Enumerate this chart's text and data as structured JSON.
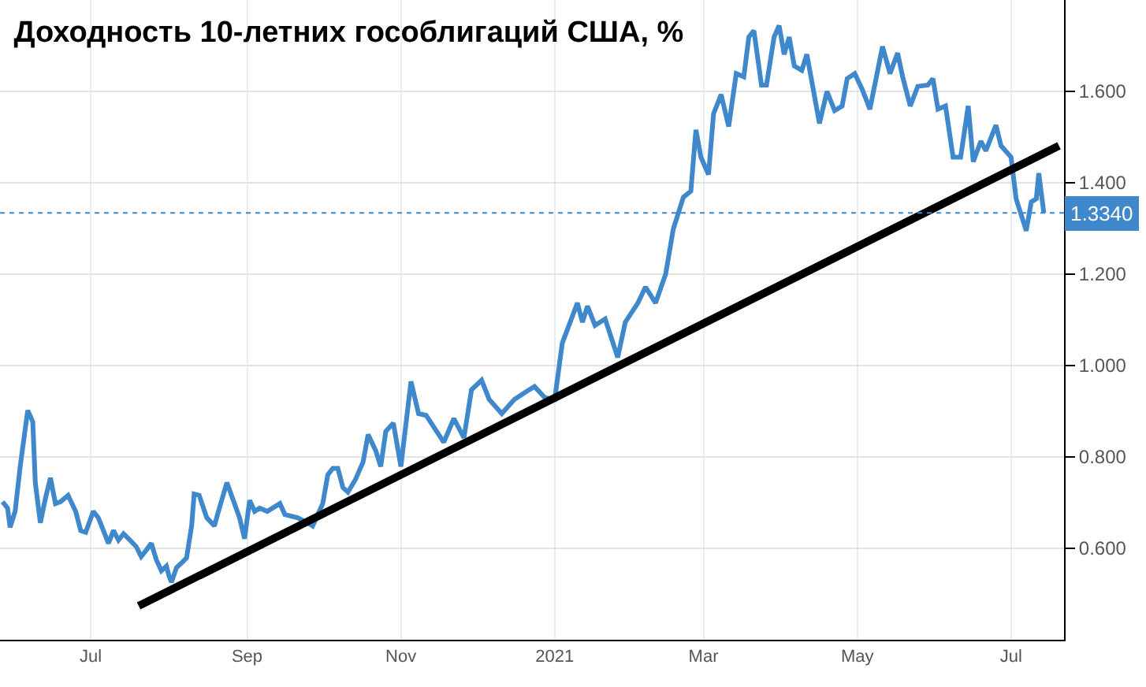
{
  "chart_data": {
    "type": "line",
    "title": "Доходность 10-летних гособлигаций США, %",
    "x": [
      "2020-05-27",
      "2020-05-29",
      "2020-05-30",
      "2020-06-01",
      "2020-06-03",
      "2020-06-06",
      "2020-06-08",
      "2020-06-09",
      "2020-06-11",
      "2020-06-13",
      "2020-06-15",
      "2020-06-17",
      "2020-06-19",
      "2020-06-22",
      "2020-06-25",
      "2020-06-27",
      "2020-06-29",
      "2020-07-02",
      "2020-07-04",
      "2020-07-06",
      "2020-07-08",
      "2020-07-10",
      "2020-07-12",
      "2020-07-14",
      "2020-07-16",
      "2020-07-19",
      "2020-07-21",
      "2020-07-23",
      "2020-07-25",
      "2020-07-27",
      "2020-07-29",
      "2020-07-31",
      "2020-08-01",
      "2020-08-02",
      "2020-08-04",
      "2020-08-06",
      "2020-08-08",
      "2020-08-10",
      "2020-08-11",
      "2020-08-13",
      "2020-08-16",
      "2020-08-19",
      "2020-08-21",
      "2020-08-24",
      "2020-08-27",
      "2020-08-29",
      "2020-08-31",
      "2020-09-02",
      "2020-09-04",
      "2020-09-06",
      "2020-09-09",
      "2020-09-14",
      "2020-09-16",
      "2020-09-21",
      "2020-09-25",
      "2020-09-27",
      "2020-10-01",
      "2020-10-03",
      "2020-10-05",
      "2020-10-07",
      "2020-10-09",
      "2020-10-11",
      "2020-10-14",
      "2020-10-17",
      "2020-10-19",
      "2020-10-22",
      "2020-10-24",
      "2020-10-26",
      "2020-10-29",
      "2020-11-01",
      "2020-11-05",
      "2020-11-08",
      "2020-11-11",
      "2020-11-18",
      "2020-11-22",
      "2020-11-26",
      "2020-11-29",
      "2020-12-03",
      "2020-12-06",
      "2020-12-11",
      "2020-12-16",
      "2020-12-21",
      "2020-12-24",
      "2020-12-28",
      "2021-01-01",
      "2021-01-04",
      "2021-01-10",
      "2021-01-12",
      "2021-01-14",
      "2021-01-17",
      "2021-01-21",
      "2021-01-26",
      "2021-01-29",
      "2021-02-03",
      "2021-02-06",
      "2021-02-10",
      "2021-02-14",
      "2021-02-17",
      "2021-02-19",
      "2021-02-21",
      "2021-02-24",
      "2021-02-26",
      "2021-02-28",
      "2021-03-03",
      "2021-03-05",
      "2021-03-08",
      "2021-03-11",
      "2021-03-14",
      "2021-03-17",
      "2021-03-19",
      "2021-03-21",
      "2021-03-24",
      "2021-03-26",
      "2021-03-29",
      "2021-03-31",
      "2021-04-02",
      "2021-04-04",
      "2021-04-06",
      "2021-04-09",
      "2021-04-11",
      "2021-04-16",
      "2021-04-19",
      "2021-04-22",
      "2021-04-25",
      "2021-04-27",
      "2021-04-30",
      "2021-05-03",
      "2021-05-06",
      "2021-05-11",
      "2021-05-14",
      "2021-05-17",
      "2021-05-19",
      "2021-05-22",
      "2021-05-25",
      "2021-05-29",
      "2021-05-31",
      "2021-06-02",
      "2021-06-05",
      "2021-06-08",
      "2021-06-11",
      "2021-06-14",
      "2021-06-16",
      "2021-06-19",
      "2021-06-21",
      "2021-06-25",
      "2021-06-27",
      "2021-07-01",
      "2021-07-03",
      "2021-07-07",
      "2021-07-09",
      "2021-07-11",
      "2021-07-12",
      "2021-07-14"
    ],
    "series": [
      {
        "color": "#3f88cb",
        "values": [
          0.702,
          0.688,
          0.646,
          0.681,
          0.779,
          0.902,
          0.877,
          0.744,
          0.656,
          0.709,
          0.754,
          0.698,
          0.702,
          0.716,
          0.681,
          0.639,
          0.635,
          0.681,
          0.667,
          0.639,
          0.611,
          0.639,
          0.618,
          0.632,
          0.621,
          0.604,
          0.582,
          0.596,
          0.611,
          0.575,
          0.551,
          0.561,
          0.54,
          0.526,
          0.558,
          0.568,
          0.579,
          0.649,
          0.719,
          0.716,
          0.667,
          0.649,
          0.688,
          0.744,
          0.698,
          0.667,
          0.621,
          0.705,
          0.681,
          0.688,
          0.681,
          0.698,
          0.674,
          0.667,
          0.656,
          0.649,
          0.698,
          0.761,
          0.775,
          0.775,
          0.733,
          0.723,
          0.751,
          0.789,
          0.849,
          0.814,
          0.779,
          0.856,
          0.874,
          0.779,
          0.965,
          0.895,
          0.891,
          0.832,
          0.884,
          0.842,
          0.947,
          0.968,
          0.926,
          0.895,
          0.926,
          0.944,
          0.954,
          0.93,
          0.926,
          1.049,
          1.137,
          1.095,
          1.13,
          1.088,
          1.102,
          1.018,
          1.095,
          1.137,
          1.172,
          1.137,
          1.2,
          1.298,
          1.333,
          1.368,
          1.382,
          1.516,
          1.456,
          1.418,
          1.551,
          1.593,
          1.523,
          1.639,
          1.632,
          1.719,
          1.733,
          1.614,
          1.614,
          1.719,
          1.744,
          1.681,
          1.719,
          1.656,
          1.646,
          1.681,
          1.53,
          1.6,
          1.558,
          1.568,
          1.628,
          1.639,
          1.604,
          1.561,
          1.698,
          1.639,
          1.684,
          1.632,
          1.568,
          1.611,
          1.614,
          1.628,
          1.561,
          1.568,
          1.456,
          1.456,
          1.568,
          1.446,
          1.491,
          1.47,
          1.526,
          1.481,
          1.456,
          1.365,
          1.295,
          1.358,
          1.365,
          1.421,
          1.334
        ]
      },
      {
        "type": "line",
        "color": "#000000",
        "x": [
          "2020-07-20",
          "2021-07-20"
        ],
        "values": [
          0.474,
          1.481
        ]
      }
    ],
    "ref_lines": [
      {
        "axis": "y",
        "value": 1.334,
        "label": "1.3340",
        "color": "#3f88cb",
        "line_style": "dotted"
      }
    ],
    "xlim": [
      "2020-05-26",
      "2021-07-22"
    ],
    "xticks": [
      {
        "value": "2020-07-01",
        "label": "Jul"
      },
      {
        "value": "2020-09-01",
        "label": "Sep"
      },
      {
        "value": "2020-11-01",
        "label": "Nov"
      },
      {
        "value": "2021-01-01",
        "label": "2021"
      },
      {
        "value": "2021-03-01",
        "label": "Mar"
      },
      {
        "value": "2021-05-01",
        "label": "May"
      },
      {
        "value": "2021-07-01",
        "label": "Jul"
      }
    ],
    "ylim": [
      0.4,
      1.8
    ],
    "yticks": [
      {
        "value": 0.6,
        "label": "0.600"
      },
      {
        "value": 0.8,
        "label": "0.800"
      },
      {
        "value": 1.0,
        "label": "1.000"
      },
      {
        "value": 1.2,
        "label": "1.200"
      },
      {
        "value": 1.4,
        "label": "1.400"
      },
      {
        "value": 1.6,
        "label": "1.600"
      }
    ],
    "grid": true
  }
}
